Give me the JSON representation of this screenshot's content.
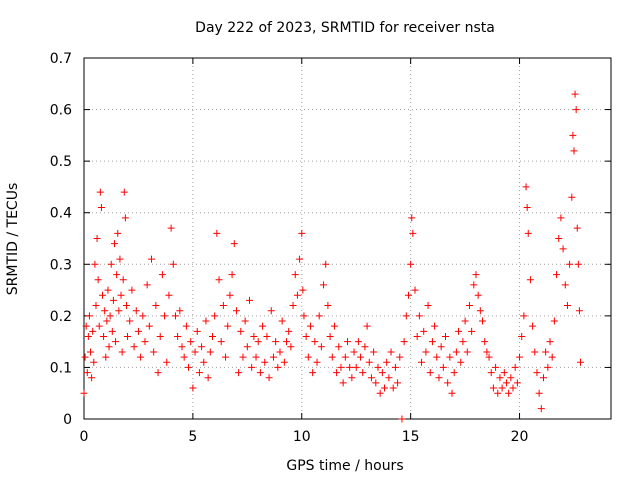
{
  "chart_data": {
    "type": "scatter",
    "title": "Day 222 of 2023, SRMTID for receiver nsta",
    "xlabel": "GPS time / hours",
    "ylabel": "SRMTID / TECUs",
    "xlim": [
      0,
      24.2
    ],
    "ylim": [
      0,
      0.7
    ],
    "xticks": [
      0,
      5,
      10,
      15,
      20
    ],
    "yticks": [
      0,
      0.1,
      0.2,
      0.3,
      0.4,
      0.5,
      0.6,
      0.7
    ],
    "xtick_labels": [
      "0",
      "5",
      "10",
      "15",
      "20"
    ],
    "ytick_labels": [
      "0",
      "0.1",
      "0.2",
      "0.3",
      "0.4",
      "0.5",
      "0.6",
      "0.7"
    ],
    "grid": true,
    "marker": "+",
    "color": "#ff0000",
    "series": [
      {
        "name": "SRMTID",
        "points": [
          [
            0.0,
            0.05
          ],
          [
            0.05,
            0.12
          ],
          [
            0.1,
            0.18
          ],
          [
            0.15,
            0.09
          ],
          [
            0.2,
            0.16
          ],
          [
            0.25,
            0.2
          ],
          [
            0.3,
            0.13
          ],
          [
            0.35,
            0.08
          ],
          [
            0.4,
            0.17
          ],
          [
            0.45,
            0.11
          ],
          [
            0.5,
            0.3
          ],
          [
            0.55,
            0.22
          ],
          [
            0.6,
            0.35
          ],
          [
            0.65,
            0.27
          ],
          [
            0.7,
            0.18
          ],
          [
            0.75,
            0.44
          ],
          [
            0.8,
            0.41
          ],
          [
            0.85,
            0.24
          ],
          [
            0.9,
            0.16
          ],
          [
            0.95,
            0.21
          ],
          [
            1.0,
            0.12
          ],
          [
            1.05,
            0.19
          ],
          [
            1.1,
            0.25
          ],
          [
            1.15,
            0.14
          ],
          [
            1.2,
            0.2
          ],
          [
            1.25,
            0.3
          ],
          [
            1.3,
            0.17
          ],
          [
            1.35,
            0.23
          ],
          [
            1.4,
            0.34
          ],
          [
            1.45,
            0.15
          ],
          [
            1.5,
            0.28
          ],
          [
            1.55,
            0.36
          ],
          [
            1.6,
            0.21
          ],
          [
            1.65,
            0.31
          ],
          [
            1.7,
            0.24
          ],
          [
            1.75,
            0.13
          ],
          [
            1.8,
            0.27
          ],
          [
            1.85,
            0.44
          ],
          [
            1.9,
            0.39
          ],
          [
            1.95,
            0.22
          ],
          [
            2.0,
            0.16
          ],
          [
            2.1,
            0.19
          ],
          [
            2.2,
            0.25
          ],
          [
            2.3,
            0.14
          ],
          [
            2.4,
            0.21
          ],
          [
            2.5,
            0.17
          ],
          [
            2.6,
            0.12
          ],
          [
            2.7,
            0.2
          ],
          [
            2.8,
            0.15
          ],
          [
            2.9,
            0.26
          ],
          [
            3.0,
            0.18
          ],
          [
            3.1,
            0.31
          ],
          [
            3.2,
            0.13
          ],
          [
            3.3,
            0.22
          ],
          [
            3.4,
            0.09
          ],
          [
            3.5,
            0.16
          ],
          [
            3.6,
            0.28
          ],
          [
            3.7,
            0.2
          ],
          [
            3.8,
            0.11
          ],
          [
            3.9,
            0.24
          ],
          [
            4.0,
            0.37
          ],
          [
            4.1,
            0.3
          ],
          [
            4.2,
            0.2
          ],
          [
            4.3,
            0.16
          ],
          [
            4.4,
            0.21
          ],
          [
            4.5,
            0.14
          ],
          [
            4.6,
            0.12
          ],
          [
            4.7,
            0.18
          ],
          [
            4.8,
            0.1
          ],
          [
            4.9,
            0.15
          ],
          [
            5.0,
            0.06
          ],
          [
            5.1,
            0.13
          ],
          [
            5.2,
            0.17
          ],
          [
            5.3,
            0.09
          ],
          [
            5.4,
            0.14
          ],
          [
            5.5,
            0.11
          ],
          [
            5.6,
            0.19
          ],
          [
            5.7,
            0.08
          ],
          [
            5.8,
            0.13
          ],
          [
            5.9,
            0.16
          ],
          [
            6.0,
            0.2
          ],
          [
            6.1,
            0.36
          ],
          [
            6.2,
            0.27
          ],
          [
            6.3,
            0.15
          ],
          [
            6.4,
            0.22
          ],
          [
            6.5,
            0.12
          ],
          [
            6.6,
            0.18
          ],
          [
            6.7,
            0.24
          ],
          [
            6.8,
            0.28
          ],
          [
            6.9,
            0.34
          ],
          [
            7.0,
            0.21
          ],
          [
            7.1,
            0.09
          ],
          [
            7.2,
            0.17
          ],
          [
            7.3,
            0.12
          ],
          [
            7.4,
            0.19
          ],
          [
            7.5,
            0.14
          ],
          [
            7.6,
            0.23
          ],
          [
            7.7,
            0.1
          ],
          [
            7.8,
            0.16
          ],
          [
            7.9,
            0.12
          ],
          [
            8.0,
            0.15
          ],
          [
            8.1,
            0.09
          ],
          [
            8.2,
            0.18
          ],
          [
            8.3,
            0.11
          ],
          [
            8.4,
            0.16
          ],
          [
            8.5,
            0.08
          ],
          [
            8.6,
            0.21
          ],
          [
            8.7,
            0.12
          ],
          [
            8.8,
            0.15
          ],
          [
            8.9,
            0.1
          ],
          [
            9.0,
            0.13
          ],
          [
            9.1,
            0.19
          ],
          [
            9.2,
            0.11
          ],
          [
            9.3,
            0.15
          ],
          [
            9.4,
            0.17
          ],
          [
            9.5,
            0.14
          ],
          [
            9.6,
            0.22
          ],
          [
            9.7,
            0.28
          ],
          [
            9.8,
            0.24
          ],
          [
            9.9,
            0.31
          ],
          [
            10.0,
            0.36
          ],
          [
            10.05,
            0.25
          ],
          [
            10.1,
            0.2
          ],
          [
            10.2,
            0.16
          ],
          [
            10.3,
            0.12
          ],
          [
            10.4,
            0.18
          ],
          [
            10.5,
            0.09
          ],
          [
            10.6,
            0.15
          ],
          [
            10.7,
            0.11
          ],
          [
            10.8,
            0.2
          ],
          [
            10.9,
            0.14
          ],
          [
            11.0,
            0.26
          ],
          [
            11.1,
            0.3
          ],
          [
            11.2,
            0.22
          ],
          [
            11.3,
            0.16
          ],
          [
            11.4,
            0.12
          ],
          [
            11.5,
            0.18
          ],
          [
            11.6,
            0.09
          ],
          [
            11.7,
            0.14
          ],
          [
            11.8,
            0.1
          ],
          [
            11.9,
            0.07
          ],
          [
            12.0,
            0.12
          ],
          [
            12.1,
            0.15
          ],
          [
            12.2,
            0.1
          ],
          [
            12.3,
            0.08
          ],
          [
            12.4,
            0.13
          ],
          [
            12.5,
            0.1
          ],
          [
            12.6,
            0.15
          ],
          [
            12.7,
            0.12
          ],
          [
            12.8,
            0.09
          ],
          [
            12.9,
            0.14
          ],
          [
            13.0,
            0.18
          ],
          [
            13.1,
            0.11
          ],
          [
            13.2,
            0.08
          ],
          [
            13.3,
            0.13
          ],
          [
            13.4,
            0.07
          ],
          [
            13.5,
            0.1
          ],
          [
            13.6,
            0.05
          ],
          [
            13.7,
            0.09
          ],
          [
            13.8,
            0.06
          ],
          [
            13.9,
            0.11
          ],
          [
            14.0,
            0.08
          ],
          [
            14.1,
            0.13
          ],
          [
            14.2,
            0.06
          ],
          [
            14.3,
            0.1
          ],
          [
            14.4,
            0.07
          ],
          [
            14.5,
            0.12
          ],
          [
            14.6,
            0.0
          ],
          [
            14.7,
            0.15
          ],
          [
            14.8,
            0.2
          ],
          [
            14.9,
            0.24
          ],
          [
            15.0,
            0.3
          ],
          [
            15.05,
            0.39
          ],
          [
            15.1,
            0.36
          ],
          [
            15.2,
            0.25
          ],
          [
            15.3,
            0.16
          ],
          [
            15.4,
            0.2
          ],
          [
            15.5,
            0.11
          ],
          [
            15.6,
            0.17
          ],
          [
            15.7,
            0.13
          ],
          [
            15.8,
            0.22
          ],
          [
            15.9,
            0.09
          ],
          [
            16.0,
            0.15
          ],
          [
            16.1,
            0.18
          ],
          [
            16.2,
            0.12
          ],
          [
            16.3,
            0.08
          ],
          [
            16.4,
            0.14
          ],
          [
            16.5,
            0.1
          ],
          [
            16.6,
            0.16
          ],
          [
            16.7,
            0.07
          ],
          [
            16.8,
            0.12
          ],
          [
            16.9,
            0.05
          ],
          [
            17.0,
            0.09
          ],
          [
            17.1,
            0.13
          ],
          [
            17.2,
            0.17
          ],
          [
            17.3,
            0.11
          ],
          [
            17.4,
            0.15
          ],
          [
            17.5,
            0.19
          ],
          [
            17.6,
            0.13
          ],
          [
            17.7,
            0.22
          ],
          [
            17.8,
            0.17
          ],
          [
            17.9,
            0.26
          ],
          [
            18.0,
            0.28
          ],
          [
            18.1,
            0.24
          ],
          [
            18.2,
            0.21
          ],
          [
            18.3,
            0.19
          ],
          [
            18.4,
            0.15
          ],
          [
            18.5,
            0.13
          ],
          [
            18.6,
            0.12
          ],
          [
            18.7,
            0.09
          ],
          [
            18.8,
            0.06
          ],
          [
            18.9,
            0.1
          ],
          [
            19.0,
            0.05
          ],
          [
            19.1,
            0.08
          ],
          [
            19.2,
            0.06
          ],
          [
            19.3,
            0.09
          ],
          [
            19.4,
            0.07
          ],
          [
            19.5,
            0.05
          ],
          [
            19.6,
            0.08
          ],
          [
            19.7,
            0.06
          ],
          [
            19.8,
            0.1
          ],
          [
            19.9,
            0.07
          ],
          [
            20.0,
            0.12
          ],
          [
            20.1,
            0.16
          ],
          [
            20.2,
            0.2
          ],
          [
            20.3,
            0.45
          ],
          [
            20.35,
            0.41
          ],
          [
            20.4,
            0.36
          ],
          [
            20.5,
            0.27
          ],
          [
            20.6,
            0.18
          ],
          [
            20.7,
            0.13
          ],
          [
            20.8,
            0.09
          ],
          [
            20.9,
            0.05
          ],
          [
            21.0,
            0.02
          ],
          [
            21.1,
            0.08
          ],
          [
            21.2,
            0.13
          ],
          [
            21.3,
            0.1
          ],
          [
            21.4,
            0.15
          ],
          [
            21.5,
            0.12
          ],
          [
            21.6,
            0.19
          ],
          [
            21.7,
            0.28
          ],
          [
            21.8,
            0.35
          ],
          [
            21.9,
            0.39
          ],
          [
            22.0,
            0.33
          ],
          [
            22.1,
            0.26
          ],
          [
            22.2,
            0.22
          ],
          [
            22.3,
            0.3
          ],
          [
            22.4,
            0.43
          ],
          [
            22.45,
            0.55
          ],
          [
            22.5,
            0.52
          ],
          [
            22.55,
            0.63
          ],
          [
            22.6,
            0.6
          ],
          [
            22.65,
            0.37
          ],
          [
            22.7,
            0.3
          ],
          [
            22.75,
            0.21
          ],
          [
            22.8,
            0.11
          ]
        ]
      }
    ]
  }
}
